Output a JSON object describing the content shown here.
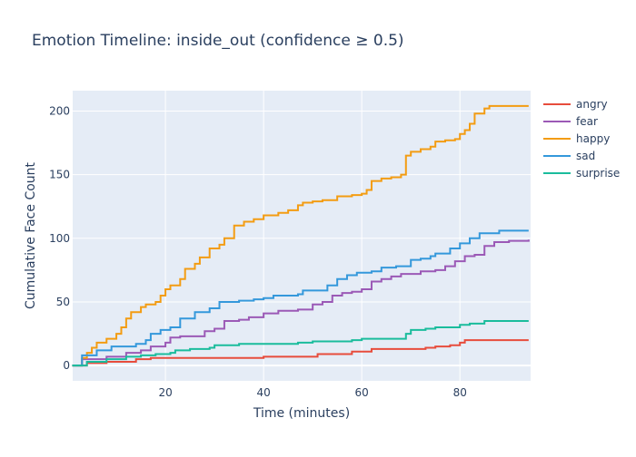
{
  "chart_data": {
    "type": "line",
    "title": "Emotion Timeline: inside_out (confidence ≥ 0.5)",
    "xlabel": "Time (minutes)",
    "ylabel": "Cumulative Face Count",
    "xlim": [
      1.1,
      94.4
    ],
    "ylim": [
      -12,
      216
    ],
    "xticks": [
      20,
      40,
      60,
      80
    ],
    "yticks": [
      0,
      50,
      100,
      150,
      200
    ],
    "grid": true,
    "legend_placement": "right",
    "line_shape": "step",
    "series": [
      {
        "name": "angry",
        "color": "#e74c3c",
        "x": [
          1,
          4,
          8,
          13,
          14,
          17,
          38,
          40,
          50,
          51,
          57,
          58,
          61,
          62,
          72,
          73,
          75,
          78,
          80,
          81,
          94
        ],
        "y": [
          0,
          2,
          3,
          3,
          5,
          6,
          6,
          7,
          7,
          9,
          9,
          11,
          11,
          13,
          13,
          14,
          15,
          16,
          18,
          20,
          20
        ]
      },
      {
        "name": "fear",
        "color": "#9b59b6",
        "x": [
          1,
          3,
          8,
          12,
          15,
          17,
          20,
          21,
          23,
          27,
          28,
          30,
          32,
          35,
          37,
          40,
          43,
          45,
          47,
          50,
          52,
          54,
          56,
          58,
          60,
          62,
          64,
          66,
          68,
          70,
          72,
          75,
          77,
          79,
          81,
          83,
          85,
          87,
          90,
          94
        ],
        "y": [
          0,
          5,
          7,
          10,
          12,
          15,
          18,
          22,
          23,
          23,
          27,
          29,
          35,
          36,
          38,
          41,
          43,
          43,
          44,
          48,
          50,
          55,
          57,
          58,
          60,
          66,
          68,
          70,
          72,
          72,
          74,
          75,
          78,
          82,
          86,
          87,
          94,
          97,
          98,
          99
        ]
      },
      {
        "name": "happy",
        "color": "#f39c12",
        "x": [
          1,
          3,
          4,
          5,
          6,
          8,
          10,
          11,
          12,
          13,
          15,
          16,
          18,
          19,
          20,
          21,
          23,
          24,
          26,
          27,
          29,
          31,
          32,
          34,
          36,
          38,
          40,
          43,
          45,
          47,
          48,
          50,
          52,
          55,
          58,
          60,
          61,
          62,
          64,
          66,
          68,
          69,
          70,
          72,
          74,
          75,
          77,
          79,
          80,
          81,
          82,
          83,
          85,
          86,
          94
        ],
        "y": [
          0,
          6,
          10,
          14,
          18,
          21,
          25,
          30,
          37,
          42,
          46,
          48,
          50,
          55,
          60,
          63,
          68,
          76,
          80,
          85,
          92,
          95,
          100,
          110,
          113,
          115,
          118,
          120,
          122,
          126,
          128,
          129,
          130,
          133,
          134,
          135,
          138,
          145,
          147,
          148,
          150,
          165,
          168,
          170,
          172,
          176,
          177,
          178,
          182,
          185,
          190,
          198,
          202,
          204,
          204
        ]
      },
      {
        "name": "sad",
        "color": "#3498db",
        "x": [
          1,
          3,
          6,
          9,
          14,
          16,
          17,
          19,
          21,
          23,
          26,
          29,
          31,
          35,
          38,
          40,
          42,
          47,
          48,
          51,
          53,
          55,
          57,
          59,
          62,
          64,
          67,
          70,
          72,
          74,
          75,
          78,
          80,
          82,
          84,
          87,
          88,
          94
        ],
        "y": [
          0,
          8,
          12,
          15,
          17,
          20,
          25,
          28,
          30,
          37,
          42,
          45,
          50,
          51,
          52,
          53,
          55,
          56,
          59,
          59,
          63,
          68,
          71,
          73,
          74,
          77,
          78,
          83,
          84,
          86,
          88,
          92,
          96,
          100,
          104,
          104,
          106,
          106
        ]
      },
      {
        "name": "surprise",
        "color": "#1abc9c",
        "x": [
          1,
          4,
          8,
          12,
          15,
          18,
          21,
          22,
          25,
          29,
          30,
          35,
          38,
          45,
          47,
          50,
          55,
          58,
          60,
          68,
          69,
          70,
          73,
          75,
          79,
          80,
          82,
          84,
          85,
          94
        ],
        "y": [
          0,
          3,
          5,
          7,
          8,
          9,
          10,
          12,
          13,
          14,
          16,
          17,
          17,
          17,
          18,
          19,
          19,
          20,
          21,
          21,
          25,
          28,
          29,
          30,
          30,
          32,
          33,
          33,
          35,
          35
        ]
      }
    ]
  }
}
